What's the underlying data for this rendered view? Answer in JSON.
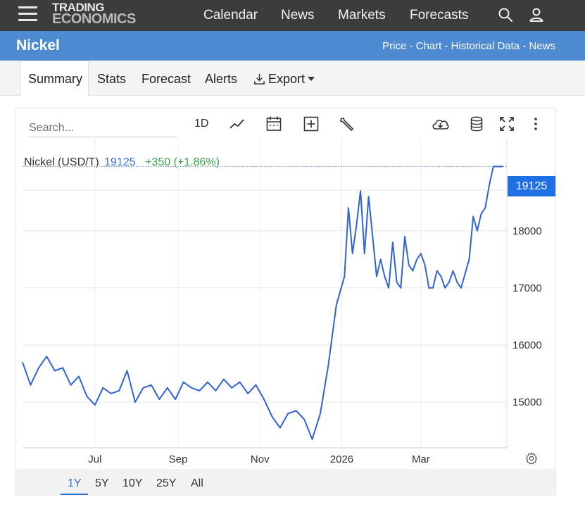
{
  "header": {
    "logo_line1": "TRADING",
    "logo_line2": "ECONOMICS",
    "nav": [
      "Calendar",
      "News",
      "Markets",
      "Forecasts"
    ]
  },
  "page": {
    "title": "Nickel",
    "sublinks": "Price - Chart - Historical Data - News"
  },
  "tabs": [
    "Summary",
    "Stats",
    "Forecast",
    "Alerts",
    "Export"
  ],
  "toolbar": {
    "search_placeholder": "Search...",
    "interval_label": "1D"
  },
  "legend": {
    "name": "Nickel (USD/T)",
    "price": "19125",
    "change": "+350 (+1.86%)"
  },
  "ranges": [
    "1Y",
    "5Y",
    "10Y",
    "25Y",
    "All"
  ],
  "active_range": "1Y",
  "colors": {
    "line": "#2f63d6",
    "accent": "#1f6fe5",
    "positive": "#3aa346",
    "header": "#3c3c3c",
    "title_bar": "#4e8ad1"
  },
  "icons": [
    "menu-icon",
    "search-icon",
    "user-icon",
    "line-chart-icon",
    "calendar-icon",
    "add-indicator-icon",
    "wrench-icon",
    "cloud-download-icon",
    "database-icon",
    "fullscreen-icon",
    "more-vertical-icon",
    "settings-gear-icon",
    "download-icon"
  ],
  "chart_data": {
    "type": "line",
    "series": [
      {
        "name": "Nickel (USD/T)"
      }
    ],
    "last_value": 19125,
    "ylim": [
      14200,
      19600
    ],
    "y_ticks": [
      15000,
      16000,
      17000,
      18000
    ],
    "x_tick_labels": [
      "Jul",
      "Sep",
      "Nov",
      "2026",
      "Mar"
    ],
    "x_tick_dates": [
      "2025-07-01",
      "2025-09-01",
      "2025-11-01",
      "2026-01-01",
      "2026-03-01"
    ],
    "grid": true,
    "x": [
      "2025-05-08",
      "2025-05-14",
      "2025-05-20",
      "2025-05-26",
      "2025-06-01",
      "2025-06-07",
      "2025-06-13",
      "2025-06-19",
      "2025-06-25",
      "2025-07-01",
      "2025-07-07",
      "2025-07-13",
      "2025-07-19",
      "2025-07-25",
      "2025-07-31",
      "2025-08-06",
      "2025-08-12",
      "2025-08-18",
      "2025-08-24",
      "2025-08-30",
      "2025-09-05",
      "2025-09-11",
      "2025-09-17",
      "2025-09-23",
      "2025-09-29",
      "2025-10-05",
      "2025-10-11",
      "2025-10-17",
      "2025-10-23",
      "2025-10-29",
      "2025-11-04",
      "2025-11-10",
      "2025-11-16",
      "2025-11-22",
      "2025-11-28",
      "2025-12-04",
      "2025-12-10",
      "2025-12-16",
      "2025-12-22",
      "2025-12-28",
      "2026-01-03",
      "2026-01-06",
      "2026-01-09",
      "2026-01-12",
      "2026-01-15",
      "2026-01-18",
      "2026-01-21",
      "2026-01-24",
      "2026-01-27",
      "2026-01-30",
      "2026-02-02",
      "2026-02-05",
      "2026-02-08",
      "2026-02-11",
      "2026-02-14",
      "2026-02-17",
      "2026-02-20",
      "2026-02-23",
      "2026-02-26",
      "2026-03-01",
      "2026-03-04",
      "2026-03-07",
      "2026-03-10",
      "2026-03-13",
      "2026-03-16",
      "2026-03-19",
      "2026-03-22",
      "2026-03-25",
      "2026-03-28",
      "2026-03-31",
      "2026-04-03",
      "2026-04-06",
      "2026-04-09",
      "2026-04-12",
      "2026-04-15",
      "2026-04-18",
      "2026-04-21",
      "2026-04-24",
      "2026-04-27",
      "2026-05-01"
    ],
    "values": [
      15700,
      15300,
      15600,
      15800,
      15550,
      15600,
      15300,
      15450,
      15100,
      14950,
      15250,
      15150,
      15200,
      15550,
      15000,
      15250,
      15300,
      15050,
      15250,
      15050,
      15350,
      15250,
      15200,
      15350,
      15200,
      15400,
      15250,
      15350,
      15150,
      15300,
      15050,
      14750,
      14550,
      14800,
      14850,
      14700,
      14350,
      14800,
      15650,
      16700,
      17200,
      18400,
      17600,
      18100,
      18700,
      17600,
      18600,
      17900,
      17200,
      17500,
      17200,
      17000,
      17800,
      17100,
      17000,
      17900,
      17400,
      17300,
      17500,
      17600,
      17400,
      17000,
      17000,
      17300,
      17200,
      17000,
      17100,
      17300,
      17100,
      17000,
      17250,
      17500,
      18250,
      18000,
      18300,
      18400,
      18800,
      19125,
      19125,
      19125
    ]
  }
}
